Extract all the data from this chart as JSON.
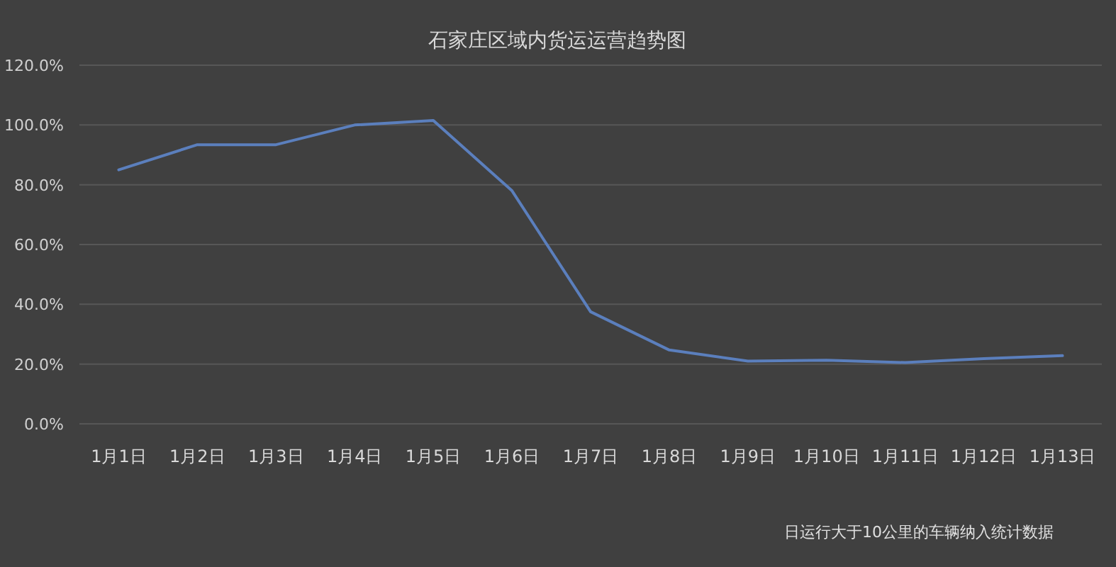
{
  "chart_data": {
    "type": "line",
    "title": "石家庄区域内货运运营趋势图",
    "categories": [
      "1月1日",
      "1月2日",
      "1月3日",
      "1月4日",
      "1月5日",
      "1月6日",
      "1月7日",
      "1月8日",
      "1月9日",
      "1月10日",
      "1月11日",
      "1月12日",
      "1月13日"
    ],
    "series": [
      {
        "color": "#5b7fbd",
        "values": [
          85,
          93.4,
          93.4,
          100,
          101.5,
          78,
          37.5,
          24.7,
          21,
          21.3,
          20.5,
          21.8,
          22.8
        ]
      }
    ],
    "ylim": [
      0,
      120
    ],
    "yticks": [
      {
        "value": 0,
        "label": "0.0%"
      },
      {
        "value": 20,
        "label": "20.0%"
      },
      {
        "value": 40,
        "label": "40.0%"
      },
      {
        "value": 60,
        "label": "60.0%"
      },
      {
        "value": 80,
        "label": "80.0%"
      },
      {
        "value": 100,
        "label": "100.0%"
      },
      {
        "value": 120,
        "label": "120.0%"
      }
    ],
    "grid": "y",
    "marker": "none",
    "line_style": "solid",
    "annotations": [
      "日运行大于10公里的车辆纳入统计数据"
    ]
  }
}
